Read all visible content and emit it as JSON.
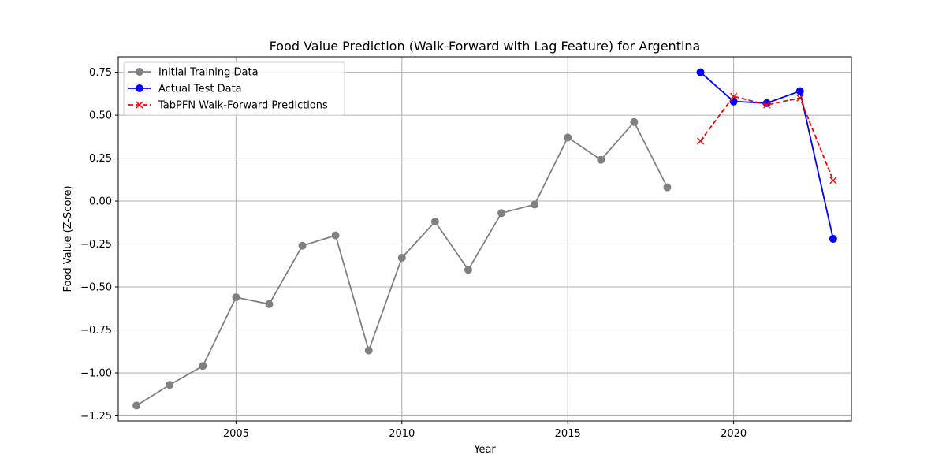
{
  "chart_data": {
    "type": "line",
    "title": "Food Value Prediction (Walk-Forward with Lag Feature) for Argentina",
    "xlabel": "Year",
    "ylabel": "Food Value (Z-Score)",
    "xlim": [
      2001.45,
      2023.55
    ],
    "ylim": [
      -1.28,
      0.84
    ],
    "xticks": [
      2005,
      2010,
      2015,
      2020
    ],
    "yticks": [
      -1.25,
      -1.0,
      -0.75,
      -0.5,
      -0.25,
      0.0,
      0.25,
      0.5,
      0.75
    ],
    "xtick_labels": [
      "2005",
      "2010",
      "2015",
      "2020"
    ],
    "ytick_labels": [
      "−1.25",
      "−1.00",
      "−0.75",
      "−0.50",
      "−0.25",
      "0.00",
      "0.25",
      "0.50",
      "0.75"
    ],
    "grid": true,
    "legend_position": "top-left",
    "series": [
      {
        "name": "Initial Training Data",
        "color": "#808080",
        "linestyle": "solid",
        "marker": "circle",
        "x": [
          2002,
          2003,
          2004,
          2005,
          2006,
          2007,
          2008,
          2009,
          2010,
          2011,
          2012,
          2013,
          2014,
          2015,
          2016,
          2017,
          2018
        ],
        "y": [
          -1.19,
          -1.07,
          -0.96,
          -0.56,
          -0.6,
          -0.26,
          -0.2,
          -0.87,
          -0.33,
          -0.12,
          -0.4,
          -0.07,
          -0.02,
          0.37,
          0.24,
          0.46,
          0.08
        ]
      },
      {
        "name": "Actual Test Data",
        "color": "#0000ff",
        "linestyle": "solid",
        "marker": "circle",
        "x": [
          2019,
          2020,
          2021,
          2022,
          2023
        ],
        "y": [
          0.75,
          0.58,
          0.57,
          0.64,
          -0.22
        ]
      },
      {
        "name": "TabPFN Walk-Forward Predictions",
        "color": "#ff0000",
        "linestyle": "dashed",
        "marker": "x",
        "x": [
          2019,
          2020,
          2021,
          2022,
          2023
        ],
        "y": [
          0.35,
          0.61,
          0.56,
          0.6,
          0.12
        ]
      }
    ]
  }
}
